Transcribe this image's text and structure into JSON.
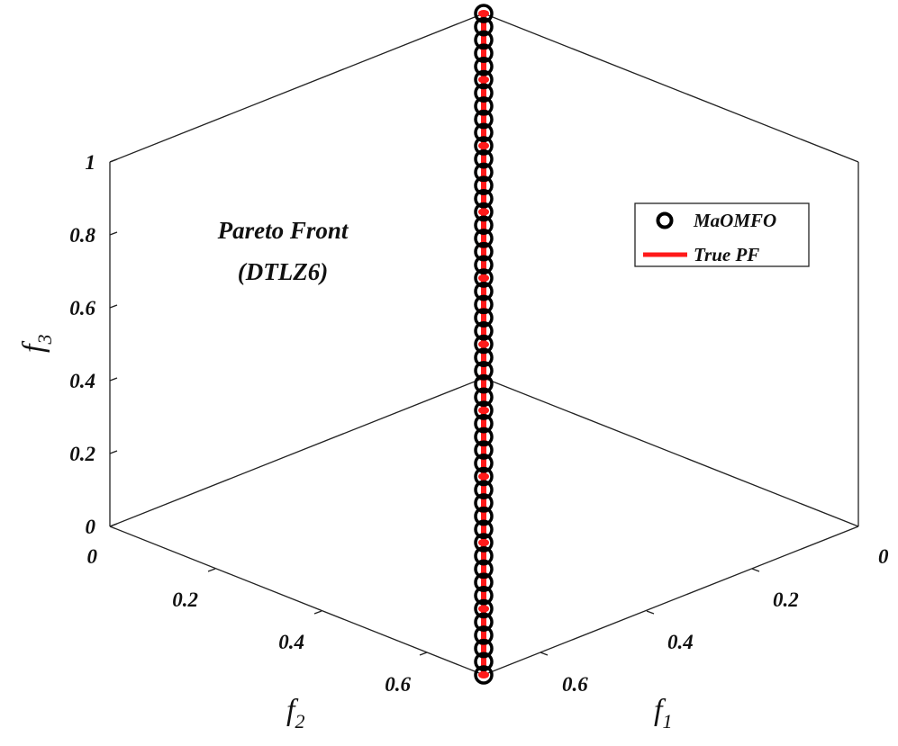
{
  "chart_data": {
    "type": "scatter",
    "projection": "3d",
    "title": [
      "Pareto Front",
      "(DTLZ6)"
    ],
    "axes": {
      "x": {
        "name": "f",
        "sub": "1",
        "ticks": [
          "0",
          "0.2",
          "0.4",
          "0.6"
        ],
        "range": [
          0,
          0.7071
        ]
      },
      "y": {
        "name": "f",
        "sub": "2",
        "ticks": [
          "0",
          "0.2",
          "0.4",
          "0.6"
        ],
        "range": [
          0,
          0.7071
        ]
      },
      "z": {
        "name": "f",
        "sub": "3",
        "ticks": [
          "0",
          "0.2",
          "0.4",
          "0.6",
          "0.8",
          "1"
        ],
        "range": [
          0,
          1
        ]
      }
    },
    "legend": {
      "position": "top-right",
      "entries": [
        {
          "label": "MaOMFO",
          "marker": "circle",
          "color": "#000000"
        },
        {
          "label": "True PF",
          "marker": "line",
          "color": "#ff1a1a"
        }
      ]
    },
    "series": [
      {
        "name": "MaOMFO",
        "style": "black-circles",
        "z": [
          0.0,
          0.02,
          0.04,
          0.06,
          0.08,
          0.1,
          0.12,
          0.14,
          0.16,
          0.18,
          0.2,
          0.22,
          0.24,
          0.26,
          0.28,
          0.3,
          0.32,
          0.34,
          0.36,
          0.38,
          0.4,
          0.42,
          0.44,
          0.46,
          0.48,
          0.5,
          0.52,
          0.54,
          0.56,
          0.58,
          0.6,
          0.62,
          0.64,
          0.66,
          0.68,
          0.7,
          0.72,
          0.74,
          0.76,
          0.78,
          0.8,
          0.82,
          0.84,
          0.86,
          0.88,
          0.9,
          0.92,
          0.94,
          0.96,
          0.98,
          1.0
        ]
      },
      {
        "name": "True PF",
        "style": "red-curve",
        "z": [
          0.0,
          0.05,
          0.1,
          0.15,
          0.2,
          0.25,
          0.3,
          0.35,
          0.4,
          0.45,
          0.5,
          0.55,
          0.6,
          0.65,
          0.7,
          0.75,
          0.8,
          0.85,
          0.9,
          0.95,
          1.0
        ]
      }
    ]
  }
}
